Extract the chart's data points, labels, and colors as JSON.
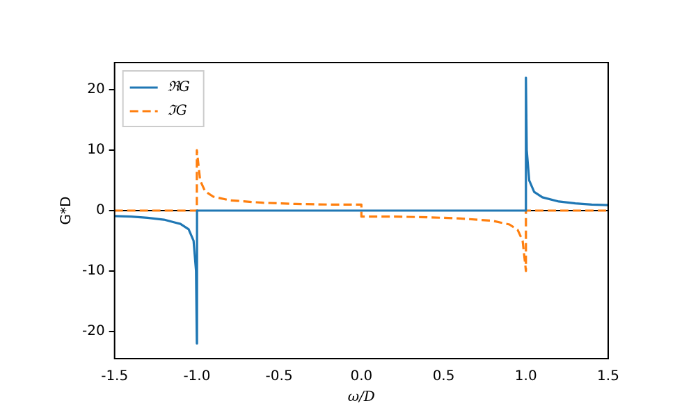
{
  "chart_data": {
    "type": "line",
    "xlabel": "ω/D",
    "ylabel": "G*D",
    "xlim": [
      -1.5,
      1.5
    ],
    "xticks": [
      -1.5,
      {
        "value": -1,
        "label": "-1.0"
      },
      -0.5,
      {
        "value": 0,
        "label": "0.0"
      },
      0.5,
      {
        "value": 1,
        "label": "1.0"
      },
      1.5
    ],
    "ylim": [
      -24.5,
      24.5
    ],
    "yticks": [
      -20,
      -10,
      0,
      10,
      20
    ],
    "legend": "top left",
    "grid": false,
    "marker": "none",
    "ref_lines": [
      {
        "axis": "y",
        "value": 0,
        "color": "#000000"
      }
    ],
    "series": [
      {
        "name": "ℜG",
        "color": "#1f77b4",
        "line_style": "solid",
        "x": [
          -1.5,
          -1.4,
          -1.3,
          -1.2,
          -1.1,
          -1.05,
          -1.02,
          -1.005,
          -1.0,
          -0.999,
          0.999,
          1.0,
          1.005,
          1.02,
          1.05,
          1.1,
          1.2,
          1.3,
          1.4,
          1.5
        ],
        "values": [
          -0.9,
          -1,
          -1.2,
          -1.5,
          -2.2,
          -3.1,
          -5,
          -10,
          -22,
          0,
          0,
          22,
          10,
          5,
          3.1,
          2.2,
          1.5,
          1.2,
          1,
          0.9
        ]
      },
      {
        "name": "ℑG",
        "color": "#ff7f0e",
        "line_style": "dashed",
        "x": [
          -1.5,
          -1.0,
          -1.0,
          -0.98,
          -0.95,
          -0.9,
          -0.8,
          -0.6,
          -0.4,
          -0.2,
          0.0,
          0.0,
          0.2,
          0.4,
          0.6,
          0.8,
          0.9,
          0.95,
          0.98,
          1.0,
          1.0,
          1.5
        ],
        "values": [
          0,
          0,
          10,
          5,
          3.2,
          2.3,
          1.7,
          1.3,
          1.1,
          1,
          1,
          -1,
          -1,
          -1.1,
          -1.3,
          -1.7,
          -2.3,
          -3.2,
          -5,
          -10,
          0,
          0
        ]
      }
    ]
  }
}
